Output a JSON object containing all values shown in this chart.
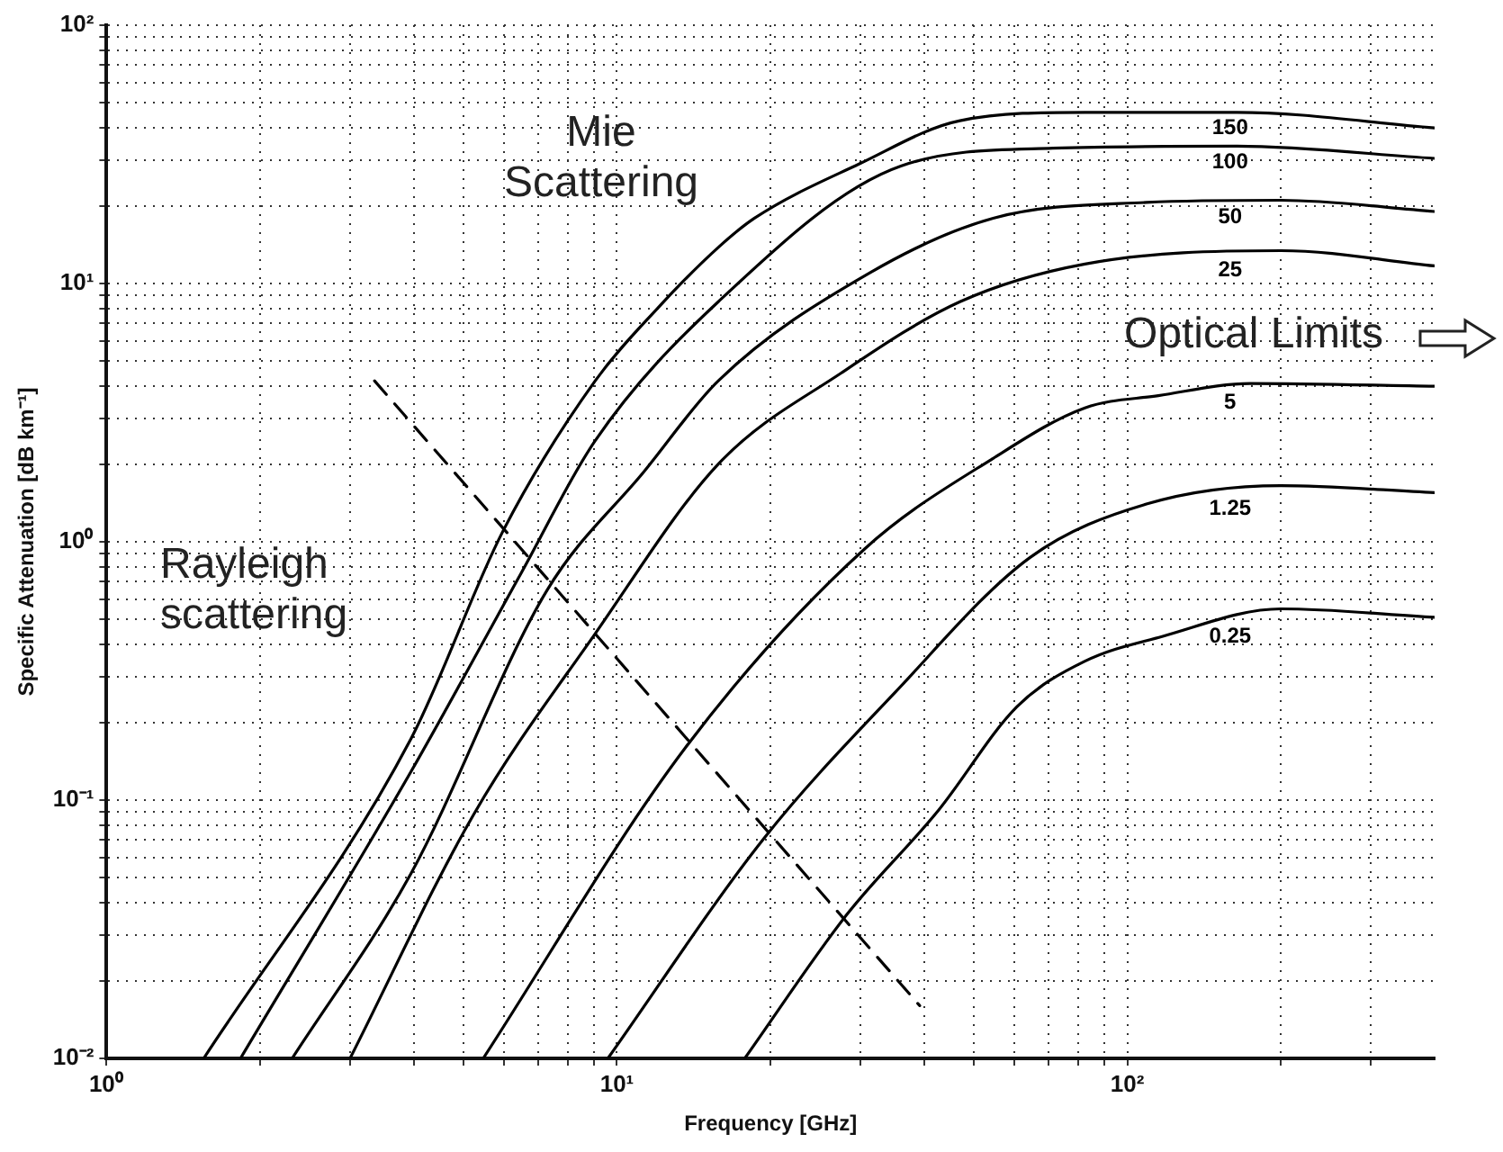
{
  "chart_data": {
    "type": "line",
    "xlabel": "Frequency [GHz]",
    "ylabel": "Specific Attenuation [dB km⁻¹]",
    "log": "xy",
    "grid": true,
    "legend": false,
    "marker": "none",
    "xlim": [
      1,
      400
    ],
    "xticks": [
      {
        "value": 1,
        "label": "10⁰"
      },
      {
        "value": 2,
        "label": null
      },
      {
        "value": 3,
        "label": null
      },
      {
        "value": 4,
        "label": null
      },
      {
        "value": 5,
        "label": null
      },
      {
        "value": 6,
        "label": null
      },
      {
        "value": 7,
        "label": null
      },
      {
        "value": 8,
        "label": null
      },
      {
        "value": 9,
        "label": null
      },
      {
        "value": 10,
        "label": "10¹"
      },
      {
        "value": 20,
        "label": null
      },
      {
        "value": 30,
        "label": null
      },
      {
        "value": 40,
        "label": null
      },
      {
        "value": 50,
        "label": null
      },
      {
        "value": 60,
        "label": null
      },
      {
        "value": 70,
        "label": null
      },
      {
        "value": 80,
        "label": null
      },
      {
        "value": 90,
        "label": null
      },
      {
        "value": 100,
        "label": "10²"
      },
      {
        "value": 200,
        "label": null
      },
      {
        "value": 300,
        "label": null
      }
    ],
    "ylim": [
      0.01,
      100
    ],
    "yticks": [
      {
        "value": 0.01,
        "label": "10⁻²"
      },
      {
        "value": 0.02,
        "label": null
      },
      {
        "value": 0.03,
        "label": null
      },
      {
        "value": 0.04,
        "label": null
      },
      {
        "value": 0.05,
        "label": null
      },
      {
        "value": 0.06,
        "label": null
      },
      {
        "value": 0.07,
        "label": null
      },
      {
        "value": 0.08,
        "label": null
      },
      {
        "value": 0.09,
        "label": null
      },
      {
        "value": 0.1,
        "label": "10⁻¹"
      },
      {
        "value": 0.2,
        "label": null
      },
      {
        "value": 0.3,
        "label": null
      },
      {
        "value": 0.4,
        "label": null
      },
      {
        "value": 0.5,
        "label": null
      },
      {
        "value": 0.6,
        "label": null
      },
      {
        "value": 0.7,
        "label": null
      },
      {
        "value": 0.8,
        "label": null
      },
      {
        "value": 0.9,
        "label": null
      },
      {
        "value": 1,
        "label": "10⁰"
      },
      {
        "value": 2,
        "label": null
      },
      {
        "value": 3,
        "label": null
      },
      {
        "value": 4,
        "label": null
      },
      {
        "value": 5,
        "label": null
      },
      {
        "value": 6,
        "label": null
      },
      {
        "value": 7,
        "label": null
      },
      {
        "value": 8,
        "label": null
      },
      {
        "value": 9,
        "label": null
      },
      {
        "value": 10,
        "label": "10¹"
      },
      {
        "value": 20,
        "label": null
      },
      {
        "value": 30,
        "label": null
      },
      {
        "value": 40,
        "label": null
      },
      {
        "value": 50,
        "label": null
      },
      {
        "value": 60,
        "label": null
      },
      {
        "value": 70,
        "label": null
      },
      {
        "value": 80,
        "label": null
      },
      {
        "value": 90,
        "label": null
      },
      {
        "value": 100,
        "label": "10²"
      }
    ],
    "series": [
      {
        "name": "150",
        "color": "#000000",
        "x": [
          1.55,
          3.95,
          5.98,
          9.06,
          12,
          15.8,
          18.6,
          29.8,
          47,
          82.6,
          164,
          400
        ],
        "values": [
          0.01,
          0.173,
          1.1,
          4.19,
          8.0,
          13.8,
          17.9,
          29,
          42.7,
          46,
          46,
          40
        ]
      },
      {
        "name": "100",
        "color": "#000000",
        "x": [
          1.83,
          3.95,
          6.5,
          9.06,
          15.8,
          36,
          71.5,
          164,
          400
        ],
        "values": [
          0.01,
          0.129,
          0.76,
          2.46,
          8.5,
          28.5,
          33.4,
          34,
          30.5
        ]
      },
      {
        "name": "50",
        "color": "#000000",
        "x": [
          2.31,
          3.95,
          7.3,
          11.3,
          15.8,
          31.3,
          54.6,
          109,
          200,
          400
        ],
        "values": [
          0.01,
          0.052,
          0.65,
          1.87,
          4.2,
          11,
          17.9,
          20.6,
          21,
          19
        ]
      },
      {
        "name": "25",
        "color": "#000000",
        "x": [
          3.0,
          5.24,
          9.06,
          15.8,
          27.5,
          47,
          82.6,
          200,
          400
        ],
        "values": [
          0.01,
          0.088,
          0.44,
          2.0,
          4.5,
          8.5,
          11.9,
          13.4,
          11.7
        ]
      },
      {
        "name": "5",
        "color": "#000000",
        "x": [
          5.47,
          13.6,
          30.6,
          54.5,
          82.6,
          115,
          174,
          400
        ],
        "values": [
          0.01,
          0.159,
          0.94,
          2.1,
          3.3,
          3.68,
          4.1,
          4.0
        ]
      },
      {
        "name": "1.25",
        "color": "#000000",
        "x": [
          9.6,
          19.4,
          35,
          64.5,
          109,
          200,
          400
        ],
        "values": [
          0.01,
          0.071,
          0.26,
          0.87,
          1.4,
          1.65,
          1.55
        ]
      },
      {
        "name": "0.25",
        "color": "#000000",
        "x": [
          17.8,
          28.2,
          42.6,
          60.8,
          82.6,
          117,
          200,
          400
        ],
        "values": [
          0.01,
          0.036,
          0.091,
          0.23,
          0.345,
          0.43,
          0.55,
          0.51
        ]
      },
      {
        "color": "#000000",
        "line_style": "dashed",
        "x": [
          3.35,
          39.2
        ],
        "values": [
          4.2,
          0.016
        ]
      }
    ],
    "annotations": [
      "Mie Scattering",
      "Rayleigh scattering",
      "Optical Limits"
    ]
  }
}
